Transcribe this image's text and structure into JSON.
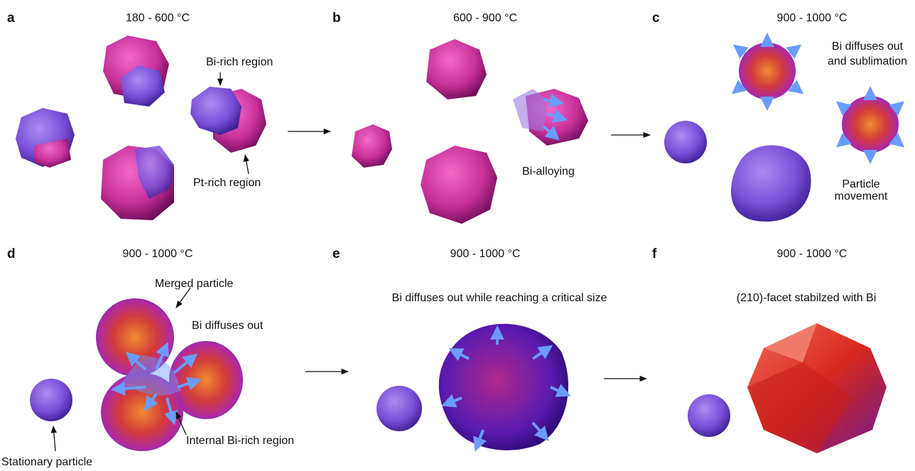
{
  "panels": [
    {
      "label": "a",
      "temperature": "180 - 600 °C",
      "annotations": [
        [
          "Bi-rich region"
        ],
        [
          "Pt-rich region"
        ]
      ]
    },
    {
      "label": "b",
      "temperature": "600 - 900 °C",
      "annotations": [
        [
          "Bi-alloying"
        ]
      ]
    },
    {
      "label": "c",
      "temperature": "900 - 1000 °C",
      "annotations": [
        [
          "Bi diffuses out",
          "and sublimation"
        ],
        [
          "Particle",
          "movement"
        ]
      ]
    },
    {
      "label": "d",
      "temperature": "900 - 1000 °C",
      "annotations": [
        [
          "Merged particle"
        ],
        [
          "Bi diffuses out"
        ],
        [
          "Internal Bi-rich region"
        ],
        [
          "Stationary particle"
        ]
      ]
    },
    {
      "label": "e",
      "temperature": "900 - 1000 °C",
      "annotations": [
        [
          "Bi diffuses out while reaching a critical size"
        ]
      ]
    },
    {
      "label": "f",
      "temperature": "900 - 1000 °C",
      "annotations": [
        [
          "(210)-facet stabilzed with Bi"
        ]
      ]
    }
  ]
}
